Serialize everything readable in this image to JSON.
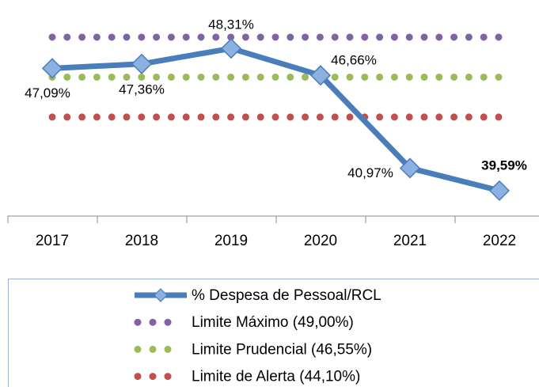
{
  "chart_data": {
    "type": "line",
    "categories": [
      "2017",
      "2018",
      "2019",
      "2020",
      "2021",
      "2022"
    ],
    "series": [
      {
        "name": "% Despesa de Pessoal/RCL",
        "color": "#4a7ebb",
        "values": [
          47.09,
          47.36,
          48.31,
          46.66,
          40.97,
          39.59
        ],
        "value_labels": [
          "47,09%",
          "47,36%",
          "48,31%",
          "46,66%",
          "40,97%",
          "39,59%"
        ]
      },
      {
        "name": "Limite Máximo (49,00%)",
        "color": "#8064a2",
        "values": [
          49.0,
          49.0,
          49.0,
          49.0,
          49.0,
          49.0
        ]
      },
      {
        "name": "Limite Prudencial (46,55%)",
        "color": "#9bbb59",
        "values": [
          46.55,
          46.55,
          46.55,
          46.55,
          46.55,
          46.55
        ]
      },
      {
        "name": "Limite de Alerta (44,10%)",
        "color": "#c0504d",
        "values": [
          44.1,
          44.1,
          44.1,
          44.1,
          44.1,
          44.1
        ]
      }
    ],
    "ylim": [
      38.03,
      51.28
    ]
  }
}
